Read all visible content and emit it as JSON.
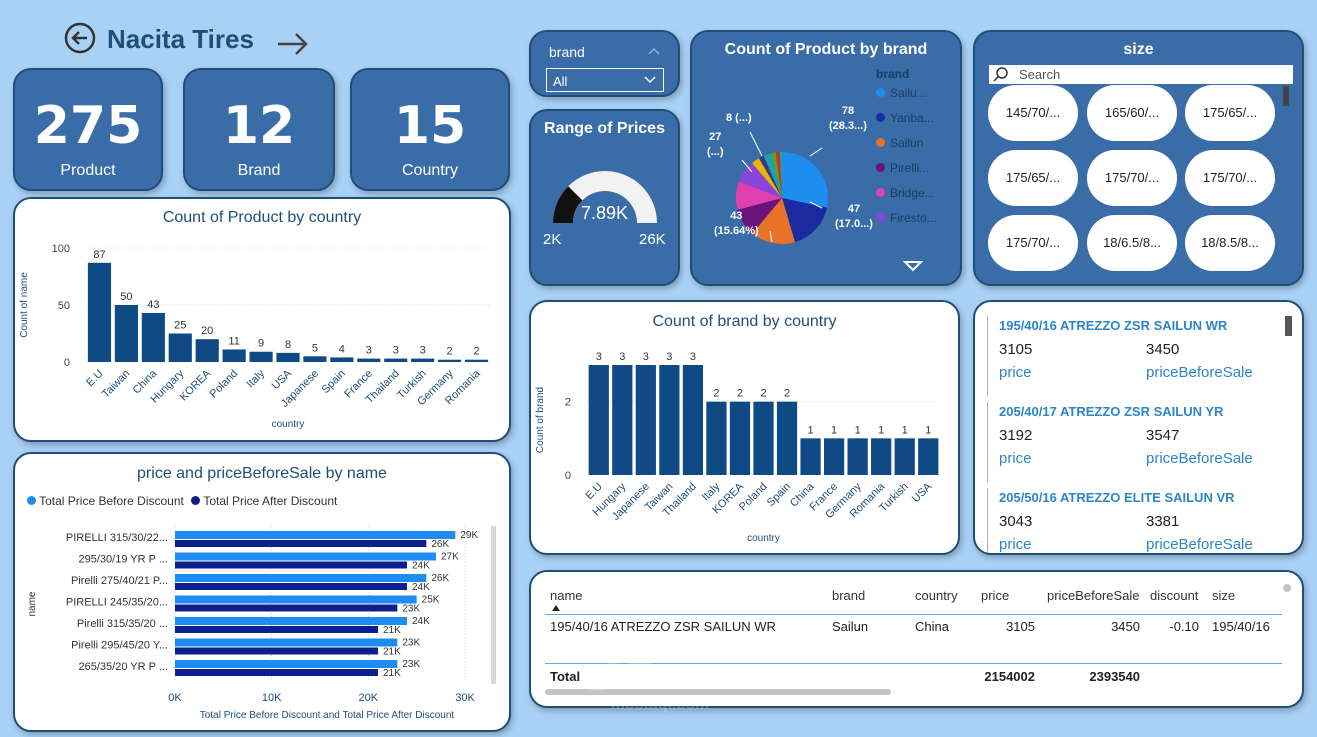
{
  "header": {
    "title": "Nacita Tires",
    "back_icon": "arrow-left-circle-icon",
    "forward_icon": "arrow-right-icon"
  },
  "kpis": [
    {
      "value": "275",
      "label": "Product"
    },
    {
      "value": "12",
      "label": "Brand"
    },
    {
      "value": "15",
      "label": "Country"
    }
  ],
  "brand_filter": {
    "label": "brand",
    "value": "All"
  },
  "range_prices": {
    "title": "Range of Prices",
    "value": "7.89K",
    "min": "2K",
    "max": "26K",
    "fraction": 0.25
  },
  "pie_chart": {
    "title": "Count of Product by brand",
    "legend_title": "brand",
    "legend": [
      "Sailu...",
      "Yanba...",
      "Sailun",
      "Pirelli...",
      "Bridge...",
      "Firesto..."
    ],
    "labels": {
      "a": "78",
      "a2": "(28.3...)",
      "b": "47",
      "b2": "(17.0...)",
      "c": "43",
      "c2": "(15.64%)",
      "d": "27",
      "d2": "(...)",
      "e": "8 (...)"
    }
  },
  "size_slicer": {
    "title": "size",
    "search_placeholder": "Search",
    "items": [
      "145/70/...",
      "165/60/...",
      "175/65/...",
      "175/65/...",
      "175/70/...",
      "175/70/...",
      "175/70/...",
      "18/6.5/8...",
      "18/8.5/8..."
    ]
  },
  "chart_data": [
    {
      "type": "bar",
      "title": "Count of Product by country",
      "xlabel": "country",
      "ylabel": "Count of name",
      "ylim": [
        0,
        100
      ],
      "yticks": [
        "0",
        "50",
        "100"
      ],
      "categories": [
        "E.U",
        "Taiwan",
        "China",
        "Hungary",
        "KOREA",
        "Poland",
        "Italy",
        "USA",
        "Japanese",
        "Spain",
        "France",
        "Thailand",
        "Turkish",
        "Germany",
        "Romania"
      ],
      "values": [
        87,
        50,
        43,
        25,
        20,
        11,
        9,
        8,
        5,
        4,
        3,
        3,
        3,
        2,
        2
      ]
    },
    {
      "type": "bar",
      "title": "Count of brand by country",
      "xlabel": "country",
      "ylabel": "Count of brand",
      "ylim": [
        0,
        3
      ],
      "yticks": [
        "0",
        "2"
      ],
      "categories": [
        "E.U",
        "Hungary",
        "Japanese",
        "Taiwan",
        "Thailand",
        "Italy",
        "KOREA",
        "Poland",
        "Spain",
        "China",
        "France",
        "Germany",
        "Romania",
        "Turkish",
        "USA"
      ],
      "values": [
        3,
        3,
        3,
        3,
        3,
        2,
        2,
        2,
        2,
        1,
        1,
        1,
        1,
        1,
        1
      ]
    },
    {
      "type": "bar",
      "orientation": "horizontal",
      "title": "price and priceBeforeSale by name",
      "xlabel": "Total Price Before Discount and Total Price After Discount",
      "ylabel": "name",
      "xlim": [
        0,
        30000
      ],
      "xticks": [
        "0K",
        "10K",
        "20K",
        "30K"
      ],
      "categories": [
        "PIRELLI 315/30/22...",
        "295/30/19 YR P ...",
        "Pirelli 275/40/21 P...",
        "PIRELLI 245/35/20...",
        "Pirelli 315/35/20 ...",
        "Pirelli 295/45/20 Y...",
        "265/35/20 YR P ..."
      ],
      "series": [
        {
          "name": "Total Price Before Discount",
          "values": [
            29000,
            27000,
            26000,
            25000,
            24000,
            23000,
            23000
          ],
          "labels": [
            "29K",
            "27K",
            "26K",
            "25K",
            "24K",
            "23K",
            "23K"
          ]
        },
        {
          "name": "Total Price After Discount",
          "values": [
            26000,
            24000,
            24000,
            23000,
            21000,
            21000,
            21000
          ],
          "labels": [
            "26K",
            "24K",
            "24K",
            "23K",
            "21K",
            "21K",
            "21K"
          ]
        }
      ]
    }
  ],
  "cards_list": [
    {
      "name": "195/40/16 ATREZZO ZSR SAILUN WR",
      "price": "3105",
      "before": "3450",
      "price_label": "price",
      "before_label": "priceBeforeSale"
    },
    {
      "name": "205/40/17 ATREZZO ZSR SAILUN YR",
      "price": "3192",
      "before": "3547",
      "price_label": "price",
      "before_label": "priceBeforeSale"
    },
    {
      "name": "205/50/16 ATREZZO ELITE SAILUN VR",
      "price": "3043",
      "before": "3381",
      "price_label": "price",
      "before_label": "priceBeforeSale"
    }
  ],
  "table": {
    "headers": [
      "name",
      "brand",
      "country",
      "price",
      "priceBeforeSale",
      "discount",
      "size"
    ],
    "row": [
      "195/40/16 ATREZZO ZSR SAILUN WR",
      "Sailun",
      "China",
      "3105",
      "3450",
      "-0.10",
      "195/40/16"
    ],
    "total_label": "Total",
    "total_price": "2154002",
    "total_before": "2393540"
  },
  "watermark": {
    "arabic": "مستقل",
    "latin": "mostaql.com"
  },
  "colors": {
    "bg": "#a9d0f5",
    "card_blue": "#3a6da8",
    "bar_dark": "#0f4a84",
    "bar_light": "#1e8cf0",
    "bar_navy": "#0c1f8c"
  }
}
